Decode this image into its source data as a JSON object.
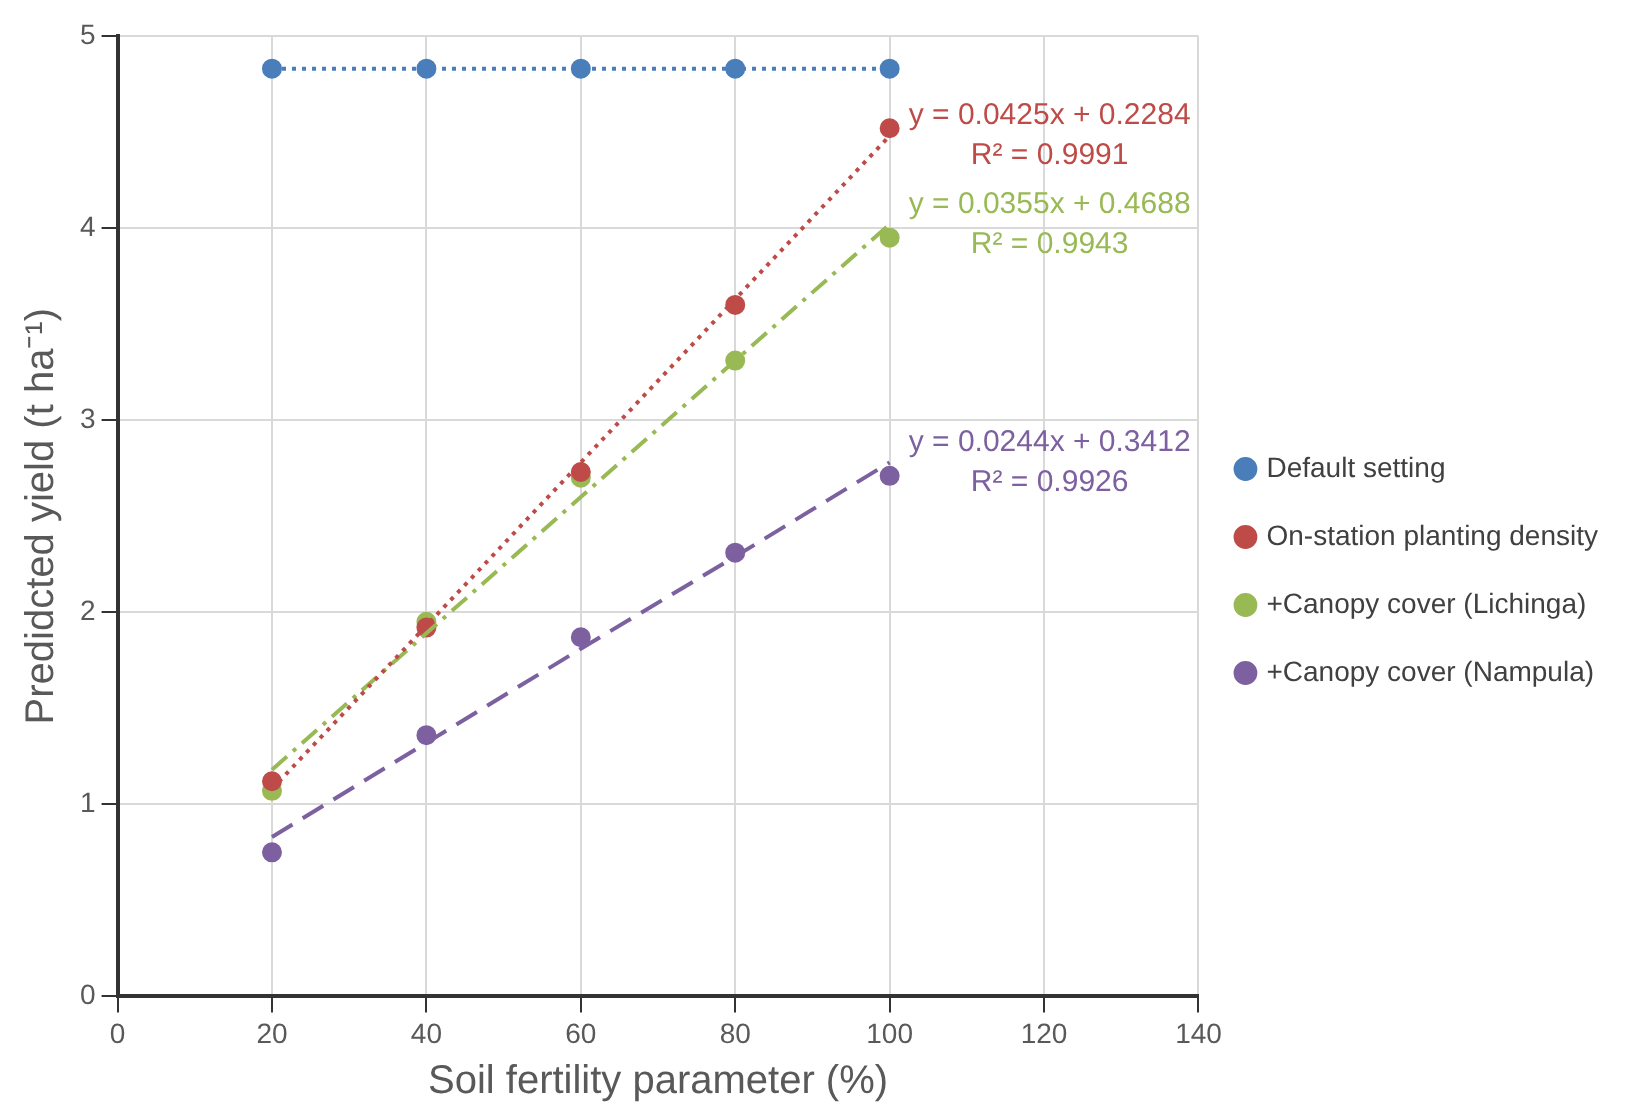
{
  "chart_data": {
    "type": "scatter",
    "xlabel": "Soil fertility parameter (%)",
    "ylabel": "Predidcted yield (t ha⁻¹)",
    "x": [
      20,
      40,
      60,
      80,
      100
    ],
    "series": [
      {
        "name": "Default setting",
        "color": "#4a7ebb",
        "values": [
          4.83,
          4.83,
          4.83,
          4.83,
          4.83
        ],
        "line_style": "dotted"
      },
      {
        "name": "On-station planting density",
        "color": "#be4b48",
        "values": [
          1.12,
          1.92,
          2.73,
          3.6,
          4.52
        ]
      },
      {
        "name": "+Canopy cover (Lichinga)",
        "color": "#98b954",
        "values": [
          1.07,
          1.95,
          2.7,
          3.31,
          3.95
        ]
      },
      {
        "name": "+Canopy cover (Nampula)",
        "color": "#7d60a0",
        "values": [
          0.75,
          1.36,
          1.87,
          2.31,
          2.71
        ]
      },
      {
        "type": "line",
        "color": "#be4b48",
        "values": [
          1.08,
          1.93,
          2.78,
          3.63,
          4.48
        ],
        "line_style": "dotted",
        "marker": "none"
      },
      {
        "type": "line",
        "color": "#98b954",
        "values": [
          1.18,
          1.89,
          2.6,
          3.31,
          4.02
        ],
        "line_style": "dashdot",
        "marker": "none"
      },
      {
        "type": "line",
        "color": "#7d60a0",
        "values": [
          0.83,
          1.32,
          1.81,
          2.29,
          2.78
        ],
        "line_style": "dashed",
        "marker": "none"
      }
    ],
    "annotations": [
      "y = 0.0425x + 0.2284\nR² = 0.9991",
      "y = 0.0355x + 0.4688\nR² = 0.9943",
      "y = 0.0244x + 0.3412\nR² = 0.9926"
    ],
    "xlim": [
      0,
      140
    ],
    "xticks": [
      0,
      20,
      40,
      60,
      80,
      100,
      120,
      140
    ],
    "ylim": [
      0,
      5
    ],
    "yticks": [
      0,
      1,
      2,
      3,
      4,
      5
    ],
    "grid": true,
    "legend": "right",
    "marker": "circle"
  }
}
